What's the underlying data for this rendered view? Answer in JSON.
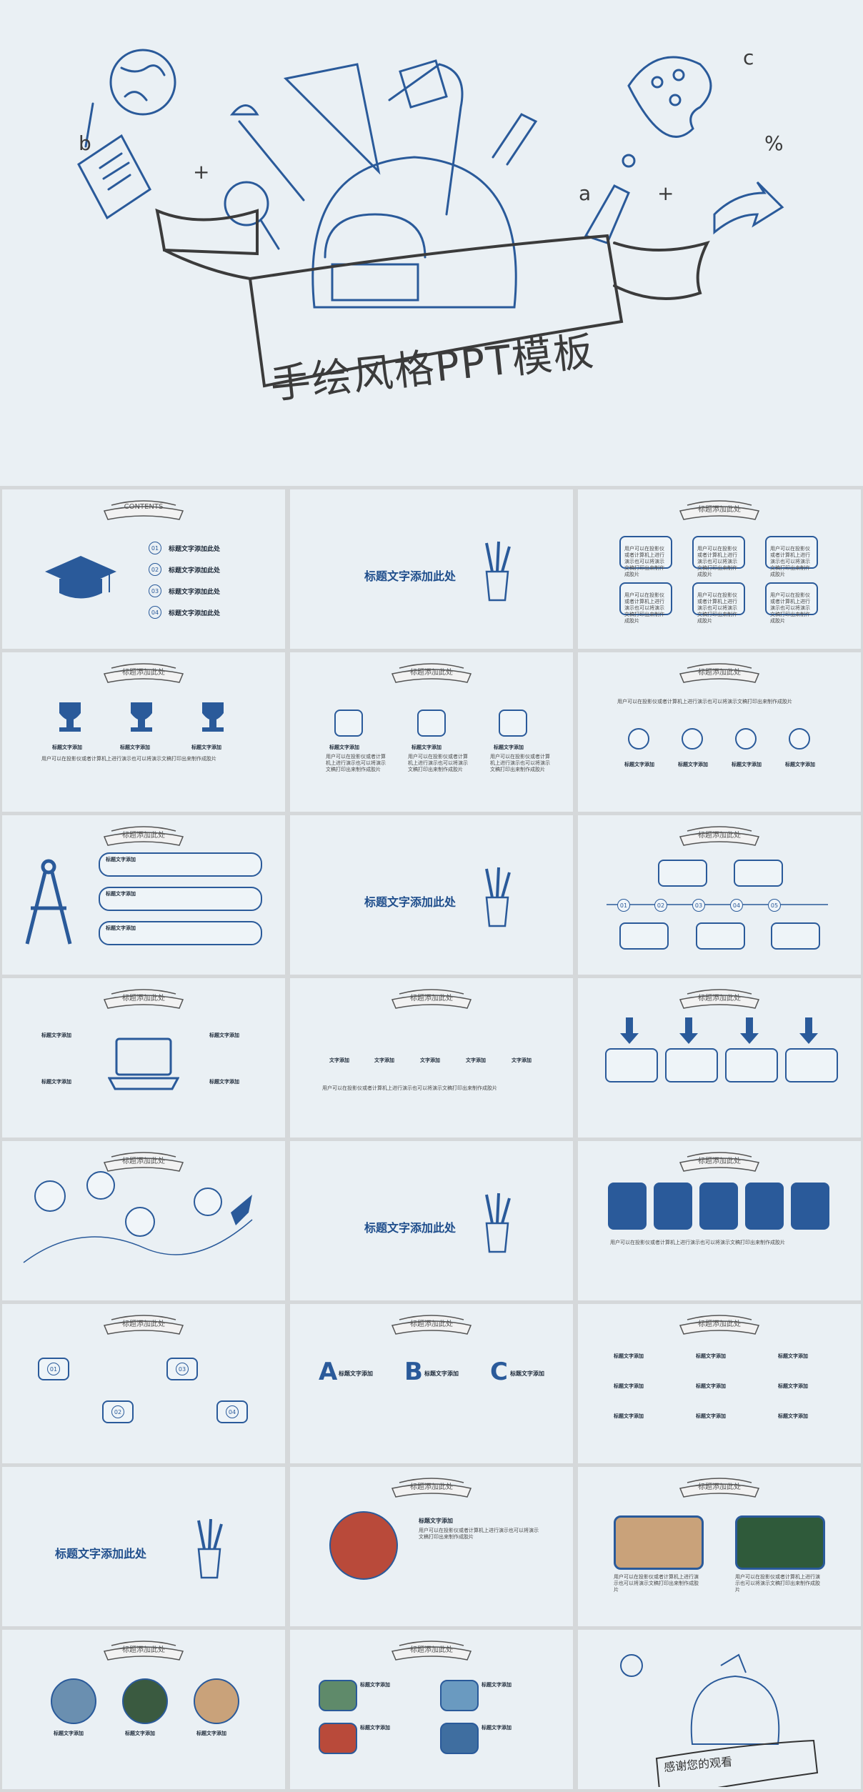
{
  "cover": {
    "title": "手绘风格PPT模板"
  },
  "banner_text": "标题添加此处",
  "contents": {
    "banner": "CONTENTS",
    "items": [
      {
        "num": "01",
        "label": "标题文字添加此处"
      },
      {
        "num": "02",
        "label": "标题文字添加此处"
      },
      {
        "num": "03",
        "label": "标题文字添加此处"
      },
      {
        "num": "04",
        "label": "标题文字添加此处"
      }
    ]
  },
  "section_title": "标题文字添加此处",
  "text_title": "标题文字添加",
  "body_text": "用户可以在投影仪或者计算机上进行演示也可以将演示文稿打印出来制作成胶片",
  "short_label": "文字添加",
  "nums": [
    "01",
    "02",
    "03",
    "04",
    "05"
  ],
  "letters": [
    "A",
    "B",
    "C"
  ],
  "thanks": "感谢您的观看",
  "colors": {
    "accent": "#1f4e8c",
    "background": "#eaf0f4",
    "frame": "#d5d8da"
  }
}
